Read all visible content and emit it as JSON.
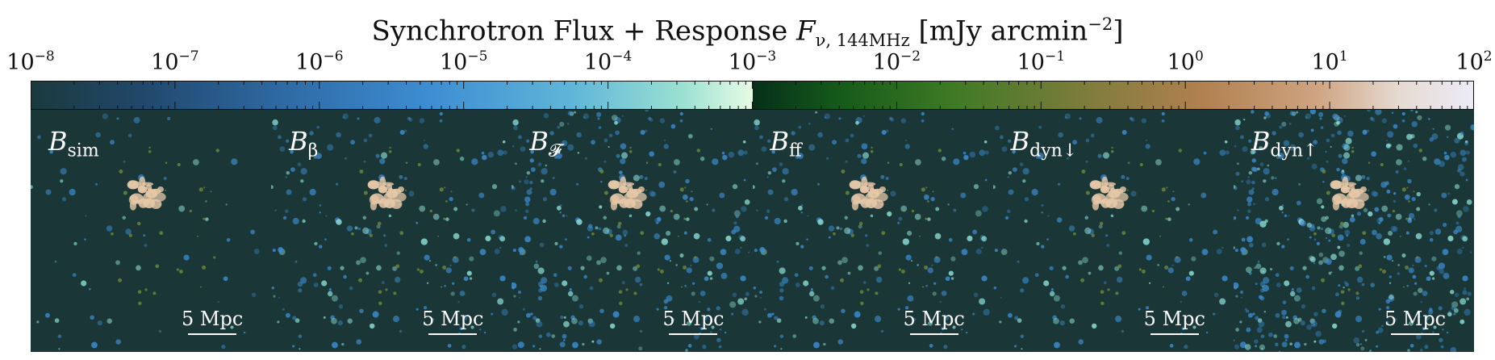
{
  "figure": {
    "title_prefix": "Synchrotron Flux + Response ",
    "title_symbol": "F",
    "title_sub": "ν, 144MHz",
    "title_unit_prefix": " [mJy arcmin",
    "title_unit_exp": "−2",
    "title_unit_suffix": "]"
  },
  "colorbar": {
    "scale": "log",
    "range": [
      1e-08,
      100
    ],
    "split_at": 0.001,
    "tick_base": "10",
    "tick_exponents": [
      "−8",
      "−7",
      "−6",
      "−5",
      "−4",
      "−3",
      "−2",
      "−1",
      "0",
      "1",
      "2"
    ],
    "left_colormap_colors": [
      "#1a3a3e",
      "#21476a",
      "#2e6aa4",
      "#3d8dd2",
      "#5fb6d8",
      "#9ae0d2",
      "#e7fbe5"
    ],
    "right_colormap_colors": [
      "#062f19",
      "#155a1a",
      "#3f7a24",
      "#7a7c3a",
      "#b0804f",
      "#cfa380",
      "#e6dbd3",
      "#ecebf7"
    ]
  },
  "panels": [
    {
      "label_main": "B",
      "label_sub": "sim",
      "scale_bar": "5 Mpc",
      "diffuse_level": 0.05
    },
    {
      "label_main": "B",
      "label_sub": "β",
      "scale_bar": "5 Mpc",
      "diffuse_level": 0.35
    },
    {
      "label_main": "B",
      "label_sub": "𝓕",
      "scale_bar": "5 Mpc",
      "diffuse_level": 0.6
    },
    {
      "label_main": "B",
      "label_sub": "ff",
      "scale_bar": "5 Mpc",
      "diffuse_level": 0.4
    },
    {
      "label_main": "B",
      "label_sub": "dyn↓",
      "scale_bar": "5 Mpc",
      "diffuse_level": 0.25
    },
    {
      "label_main": "B",
      "label_sub": "dyn↑",
      "scale_bar": "5 Mpc",
      "diffuse_level": 1.0
    }
  ],
  "colors": {
    "background": "#1a3636",
    "cluster_core": "#e6c8a8",
    "diffuse_blue": "#3d8dd2",
    "diffuse_cyan": "#8ee0d8",
    "filament_green": "#6f8a3a"
  }
}
